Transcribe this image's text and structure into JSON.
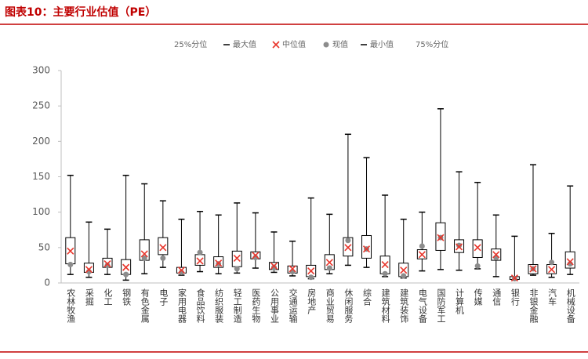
{
  "chart_data": {
    "type": "box",
    "title": "图表10：主要行业估值（PE）",
    "categories": [
      "农林牧渔",
      "采掘",
      "化工",
      "钢铁",
      "有色金属",
      "电子",
      "家用电器",
      "食品饮料",
      "纺织服装",
      "轻工制造",
      "医药生物",
      "公用事业",
      "交通运输",
      "房地产",
      "商业贸易",
      "休闲服务",
      "综合",
      "建筑材料",
      "建筑装饰",
      "电气设备",
      "国防军工",
      "计算机",
      "传媒",
      "通信",
      "银行",
      "非银金融",
      "汽车",
      "机械设备"
    ],
    "series": [
      {
        "name": "25%分位",
        "role": "q1",
        "values": [
          27,
          15,
          22,
          12,
          32,
          40,
          14,
          25,
          22,
          23,
          34,
          19,
          14,
          9,
          19,
          38,
          35,
          13,
          9,
          34,
          46,
          43,
          36,
          32,
          5,
          13,
          13,
          21
        ]
      },
      {
        "name": "最大值",
        "role": "max",
        "marker": "dash",
        "color": "#000000",
        "values": [
          152,
          86,
          76,
          152,
          140,
          116,
          90,
          101,
          96,
          113,
          99,
          72,
          59,
          120,
          97,
          210,
          177,
          124,
          90,
          100,
          246,
          157,
          142,
          96,
          66,
          167,
          70,
          137
        ]
      },
      {
        "name": "中位值",
        "role": "median",
        "marker": "cross",
        "color": "#e8362c",
        "values": [
          45,
          19,
          27,
          22,
          41,
          50,
          18,
          31,
          28,
          35,
          39,
          24,
          20,
          17,
          29,
          50,
          48,
          26,
          18,
          40,
          64,
          51,
          50,
          40,
          7,
          20,
          19,
          30
        ]
      },
      {
        "name": "现值",
        "role": "current",
        "marker": "dot",
        "color": "#8c8c8c",
        "values": [
          26,
          16,
          25,
          12,
          35,
          35,
          15,
          43,
          27,
          20,
          36,
          22,
          16,
          8,
          21,
          60,
          48,
          13,
          10,
          52,
          64,
          53,
          24,
          36,
          6,
          20,
          29,
          27
        ]
      },
      {
        "name": "最小值",
        "role": "min",
        "marker": "dash",
        "color": "#000000",
        "values": [
          12,
          8,
          12,
          4,
          13,
          22,
          11,
          16,
          13,
          14,
          21,
          15,
          10,
          6,
          13,
          25,
          22,
          9,
          7,
          17,
          19,
          18,
          20,
          9,
          4,
          11,
          8,
          12
        ]
      },
      {
        "name": "75%分位",
        "role": "q3",
        "values": [
          64,
          28,
          35,
          33,
          61,
          64,
          22,
          40,
          37,
          45,
          44,
          29,
          24,
          25,
          40,
          64,
          67,
          38,
          28,
          47,
          85,
          61,
          61,
          48,
          9,
          26,
          26,
          44
        ]
      }
    ],
    "ylim": [
      0,
      300
    ],
    "yticks": [
      0,
      50,
      100,
      150,
      200,
      250,
      300
    ]
  }
}
